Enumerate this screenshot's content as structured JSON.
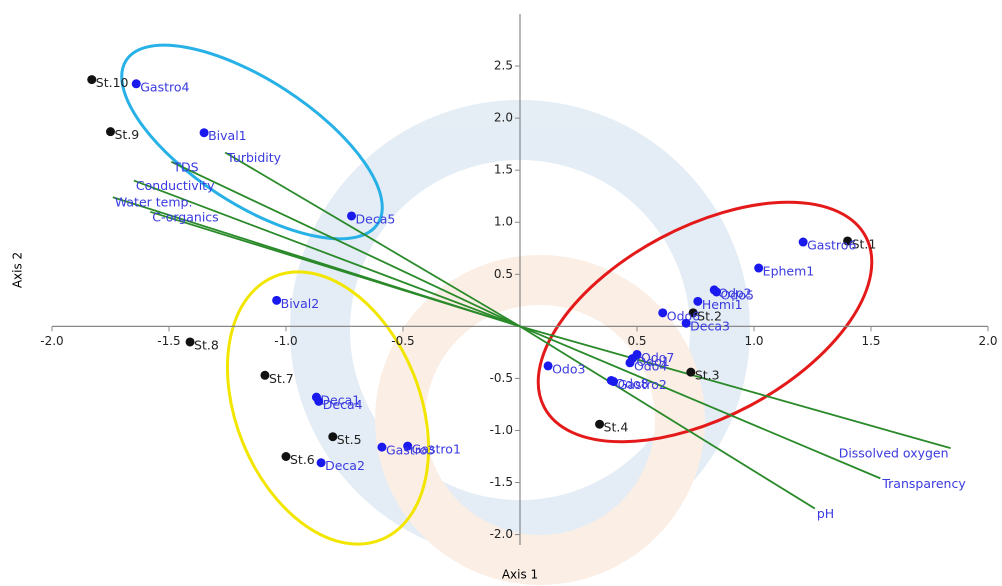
{
  "chart_data": {
    "type": "biplot",
    "x_label": "Axis 1",
    "y_label": "Axis 2",
    "xlim": [
      -2.0,
      2.0
    ],
    "ylim": [
      -2.1,
      3.0
    ],
    "xticks": [
      {
        "value": -2.0,
        "label": "-2.0"
      },
      -1.5,
      {
        "value": -1.0,
        "label": "-1.0"
      },
      -0.5,
      0.5,
      {
        "value": 1.0,
        "label": "1.0"
      },
      1.5,
      {
        "value": 2.0,
        "label": "2.0"
      }
    ],
    "yticks": [
      {
        "value": -2.0,
        "label": "-2.0"
      },
      -1.5,
      {
        "value": -1.0,
        "label": "-1.0"
      },
      -0.5,
      0.5,
      {
        "value": 1.0,
        "label": "1.0"
      },
      1.5,
      {
        "value": 2.0,
        "label": "2.0"
      },
      2.5
    ],
    "series": [
      {
        "color": "#111111",
        "label_color": "#222222",
        "labels": [
          "St.10",
          "St.9",
          "St.8",
          "St.7",
          "St.5",
          "St.6",
          "St.4",
          "St.3",
          "St.2",
          "St.1"
        ],
        "x": [
          -1.83,
          -1.75,
          -1.41,
          -1.09,
          -0.8,
          -1.0,
          0.34,
          0.73,
          0.74,
          1.4
        ],
        "y": [
          2.37,
          1.87,
          -0.15,
          -0.47,
          -1.06,
          -1.25,
          -0.94,
          -0.44,
          0.13,
          0.82
        ]
      },
      {
        "color": "#1a1aee",
        "label_color": "#3a3ae0",
        "labels": [
          "Gastro4",
          "Bival1",
          "Deca5",
          "Bival2",
          "Deca1",
          "Deca4",
          "Gastro1",
          "Gastro3",
          "Deca2",
          "Odo3",
          "Odo1",
          "Odo7",
          "Odo4",
          "Odo8",
          "Gastro2",
          "Odo6",
          "Deca3",
          "Odo2",
          "Odo5",
          "Hemi1",
          "Ephem1",
          "Gastro6"
        ],
        "x": [
          -1.64,
          -1.35,
          -0.72,
          -1.04,
          -0.87,
          -0.86,
          -0.48,
          -0.59,
          -0.85,
          0.12,
          0.48,
          0.5,
          0.47,
          0.39,
          0.4,
          0.61,
          0.71,
          0.83,
          0.84,
          0.76,
          1.02,
          1.21
        ],
        "y": [
          2.33,
          1.86,
          1.06,
          0.25,
          -0.68,
          -0.72,
          -1.15,
          -1.16,
          -1.31,
          -0.38,
          -0.31,
          -0.27,
          -0.35,
          -0.52,
          -0.53,
          0.13,
          0.03,
          0.35,
          0.33,
          0.24,
          0.56,
          0.81
        ]
      }
    ],
    "vectors": {
      "color": "#2a8a2a",
      "label_color": "#3a3ae0",
      "labels": [
        "TDS",
        "Turbidity",
        "Conductivity",
        "Water temp.",
        "C-organics",
        "Dissolved oxygen",
        "Transparency",
        "pH"
      ],
      "x": [
        -1.49,
        -1.26,
        -1.65,
        -1.74,
        -1.58,
        1.84,
        1.54,
        1.26
      ],
      "y": [
        1.58,
        1.67,
        1.4,
        1.24,
        1.1,
        -1.17,
        -1.46,
        -1.75
      ]
    }
  }
}
